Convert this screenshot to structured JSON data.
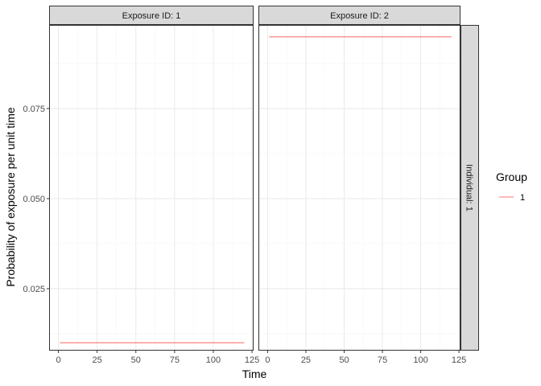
{
  "chart_data": {
    "type": "line",
    "xlabel": "Time",
    "ylabel": "Probability of exposure per unit time",
    "x_ticks": [
      0,
      25,
      50,
      75,
      100,
      125
    ],
    "y_ticks": [
      0.025,
      0.05,
      0.075
    ],
    "y_tick_labels": [
      "0.025",
      "0.050",
      "0.075"
    ],
    "xlim": [
      -6,
      126
    ],
    "ylim": [
      0.0078,
      0.0982
    ],
    "grid": true,
    "legend": {
      "title": "Group",
      "position": "right"
    },
    "row_strip": "Individual: 1",
    "panels": [
      {
        "strip": "Exposure ID: 1",
        "series": [
          {
            "name": "1",
            "x": [
              1,
              120
            ],
            "y": [
              0.01,
              0.01
            ]
          }
        ]
      },
      {
        "strip": "Exposure ID: 2",
        "series": [
          {
            "name": "1",
            "x": [
              1,
              120
            ],
            "y": [
              0.0949,
              0.0949
            ]
          }
        ]
      }
    ],
    "series_colors": {
      "1": "#F8766D"
    }
  },
  "colors": {
    "panel_border": "#333333",
    "strip_fill": "#D9D9D9",
    "grid_major": "#EBEBEB",
    "grid_minor": "#F5F5F5",
    "line": "#F8766D"
  }
}
